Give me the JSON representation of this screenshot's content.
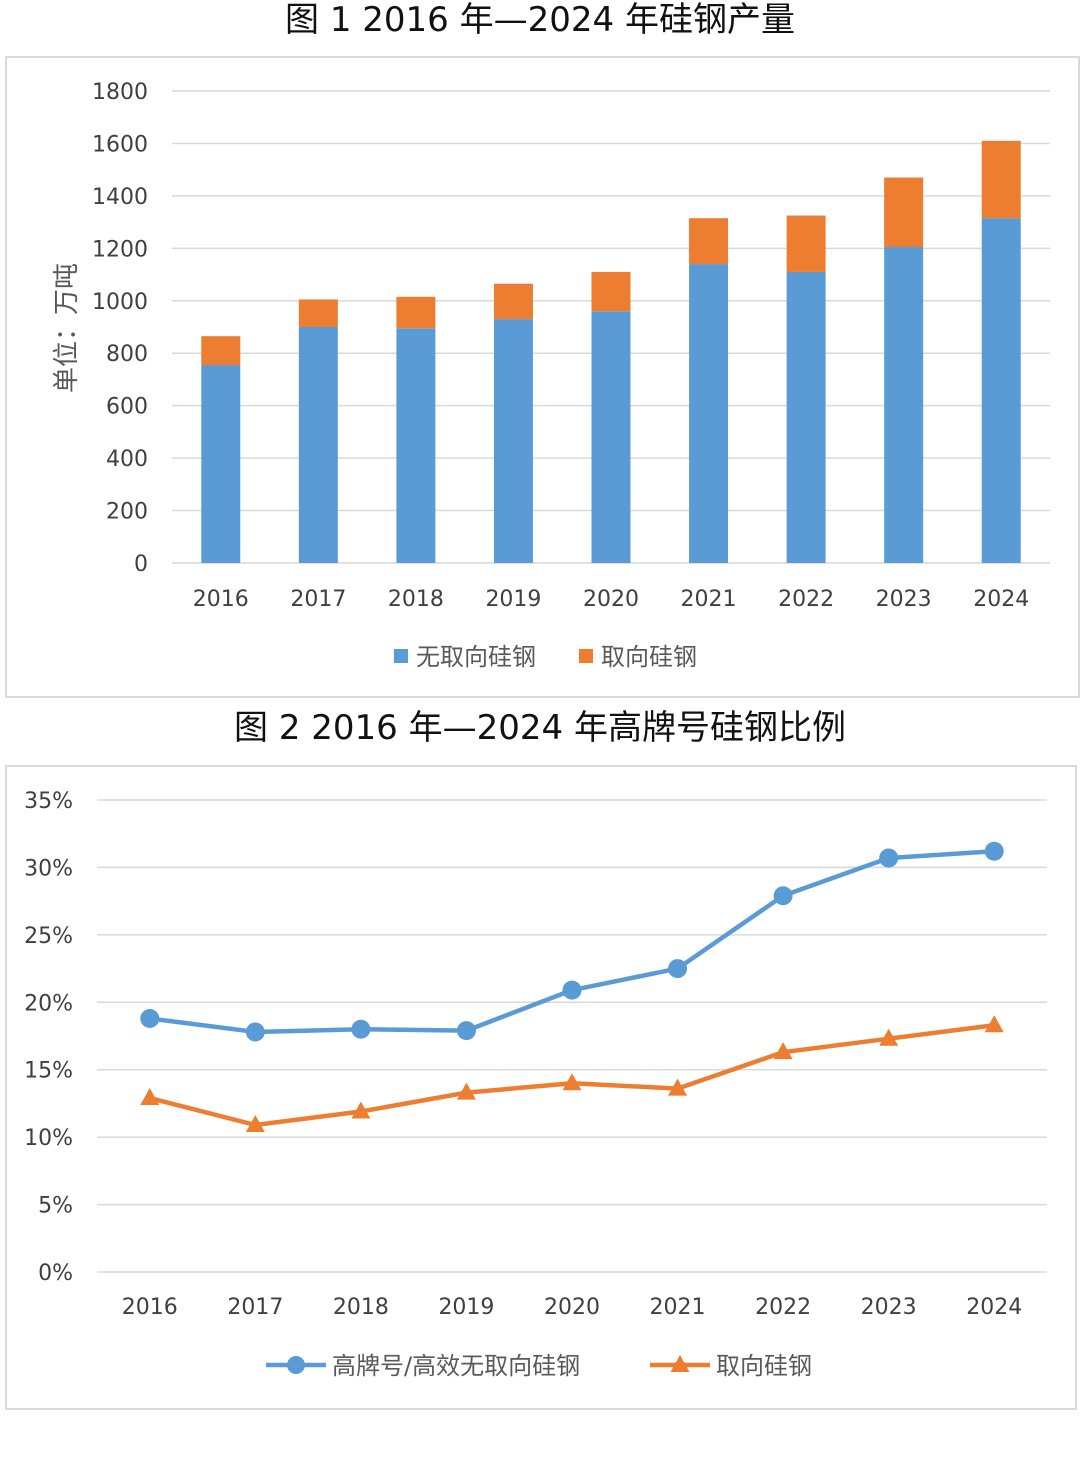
{
  "figure1": {
    "title": "图 1 2016 年—2024 年硅钢产量",
    "chart_data": {
      "type": "bar",
      "stacked": true,
      "categories": [
        "2016",
        "2017",
        "2018",
        "2019",
        "2020",
        "2021",
        "2022",
        "2023",
        "2024"
      ],
      "series": [
        {
          "name": "无取向硅钢",
          "color": "#5B9BD5",
          "values": [
            755,
            900,
            895,
            930,
            960,
            1140,
            1110,
            1205,
            1315
          ]
        },
        {
          "name": "取向硅钢",
          "color": "#ED7D31",
          "values": [
            110,
            105,
            120,
            135,
            150,
            175,
            215,
            265,
            295
          ]
        }
      ],
      "ylabel": "单位：万吨",
      "ylim": [
        0,
        1800
      ],
      "yticks": [
        0,
        200,
        400,
        600,
        800,
        1000,
        1200,
        1400,
        1600,
        1800
      ],
      "grid": true,
      "legend": "bottom"
    }
  },
  "figure2": {
    "title": "图 2 2016 年—2024 年高牌号硅钢比例",
    "chart_data": {
      "type": "line",
      "categories": [
        "2016",
        "2017",
        "2018",
        "2019",
        "2020",
        "2021",
        "2022",
        "2023",
        "2024"
      ],
      "series": [
        {
          "name": "高牌号/高效无取向硅钢",
          "color": "#5B9BD5",
          "marker": "circle",
          "values": [
            18.8,
            17.8,
            18.0,
            17.9,
            20.9,
            22.5,
            27.9,
            30.7,
            31.2
          ]
        },
        {
          "name": "取向硅钢",
          "color": "#ED7D31",
          "marker": "triangle",
          "values": [
            12.9,
            10.9,
            11.9,
            13.3,
            14.0,
            13.6,
            16.3,
            17.3,
            18.3
          ]
        }
      ],
      "ylim": [
        0,
        35
      ],
      "yticks": [
        "0%",
        "5%",
        "10%",
        "15%",
        "20%",
        "25%",
        "30%",
        "35%"
      ],
      "grid": true,
      "legend": "bottom"
    }
  }
}
